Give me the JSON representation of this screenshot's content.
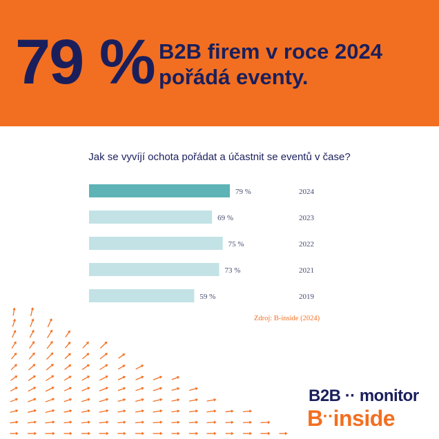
{
  "banner": {
    "stat": "79 %",
    "headline_line1": "B2B  firem  v roce 2024",
    "headline_line2": "pořádá eventy.",
    "background_color": "#f26f21",
    "text_color": "#1a1f5c"
  },
  "chart_data": {
    "type": "bar",
    "orientation": "horizontal",
    "title": "Jak se vyvíjí ochota pořádat a účastnit se eventů v čase?",
    "categories": [
      "2024",
      "2023",
      "2022",
      "2021",
      "2019"
    ],
    "values": [
      79,
      69,
      75,
      73,
      59
    ],
    "value_labels": [
      "79 %",
      "69 %",
      "75 %",
      "73 %",
      "59 %"
    ],
    "highlight_color": "#5db3b6",
    "bar_color": "#c2e2e5",
    "xlim": [
      0,
      100
    ],
    "grid": false,
    "legend": "none"
  },
  "source": "Zdroj: B-inside (2024)",
  "logos": {
    "b2b_left": "B2B",
    "b2b_dots": "··",
    "b2b_right": "monitor",
    "inside_left": "B",
    "inside_dots": "··",
    "inside_right": "inside"
  }
}
